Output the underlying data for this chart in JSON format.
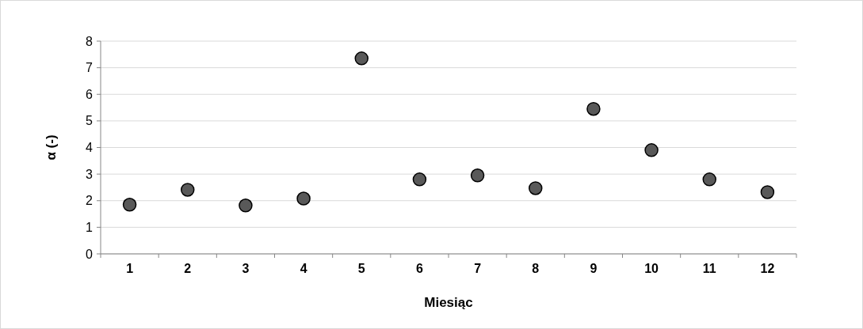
{
  "chart_data": {
    "type": "scatter",
    "xlabel": "Miesiąc",
    "ylabel": "α (-)",
    "categories": [
      "1",
      "2",
      "3",
      "4",
      "5",
      "6",
      "7",
      "8",
      "9",
      "10",
      "11",
      "12"
    ],
    "series": [
      {
        "color": "#595959",
        "values": [
          1.85,
          2.41,
          1.82,
          2.08,
          7.35,
          2.8,
          2.95,
          2.47,
          5.45,
          3.9,
          2.8,
          2.32
        ]
      }
    ],
    "ylim": [
      0,
      8
    ],
    "yticks": [
      0,
      1,
      2,
      3,
      4,
      5,
      6,
      7,
      8
    ],
    "grid": "y",
    "marker": "circle"
  }
}
